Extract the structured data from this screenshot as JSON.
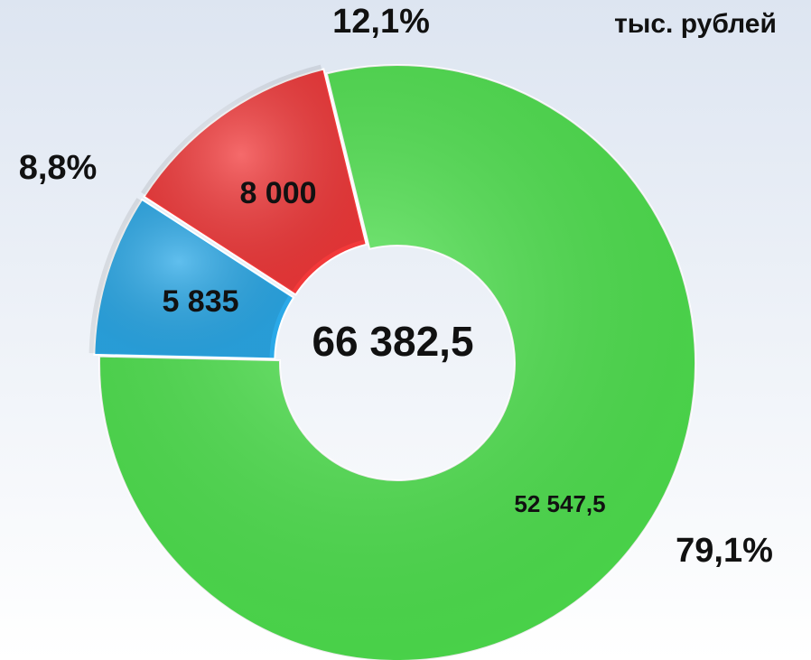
{
  "chart_data": {
    "type": "donut",
    "unit_label": "тыс. рублей",
    "total": 66382.5,
    "total_label": "66 382,5",
    "categories": [
      null,
      null,
      null
    ],
    "values": [
      52547.5,
      5835,
      8000
    ],
    "value_labels": [
      "52 547,5",
      "5 835",
      "8 000"
    ],
    "percents": [
      79.1,
      8.8,
      12.1
    ],
    "percent_labels": [
      "79,1%",
      "8,8%",
      "12,1%"
    ],
    "colors": [
      "#4fe34f",
      "#2ba9e8",
      "#f2393a"
    ]
  }
}
